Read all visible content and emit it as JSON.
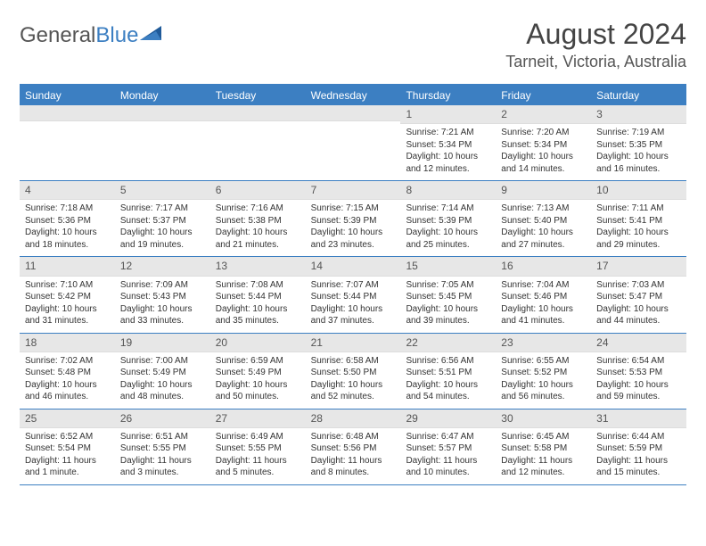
{
  "logo": {
    "text1": "General",
    "text2": "Blue"
  },
  "title": "August 2024",
  "location": "Tarneit, Victoria, Australia",
  "colors": {
    "accent": "#3c7fc2",
    "header_bg": "#e7e7e7",
    "text": "#333333",
    "title_text": "#444444"
  },
  "weekdays": [
    "Sunday",
    "Monday",
    "Tuesday",
    "Wednesday",
    "Thursday",
    "Friday",
    "Saturday"
  ],
  "weeks": [
    [
      {
        "n": "",
        "s": "",
        "ss": "",
        "d": ""
      },
      {
        "n": "",
        "s": "",
        "ss": "",
        "d": ""
      },
      {
        "n": "",
        "s": "",
        "ss": "",
        "d": ""
      },
      {
        "n": "",
        "s": "",
        "ss": "",
        "d": ""
      },
      {
        "n": "1",
        "s": "Sunrise: 7:21 AM",
        "ss": "Sunset: 5:34 PM",
        "d": "Daylight: 10 hours and 12 minutes."
      },
      {
        "n": "2",
        "s": "Sunrise: 7:20 AM",
        "ss": "Sunset: 5:34 PM",
        "d": "Daylight: 10 hours and 14 minutes."
      },
      {
        "n": "3",
        "s": "Sunrise: 7:19 AM",
        "ss": "Sunset: 5:35 PM",
        "d": "Daylight: 10 hours and 16 minutes."
      }
    ],
    [
      {
        "n": "4",
        "s": "Sunrise: 7:18 AM",
        "ss": "Sunset: 5:36 PM",
        "d": "Daylight: 10 hours and 18 minutes."
      },
      {
        "n": "5",
        "s": "Sunrise: 7:17 AM",
        "ss": "Sunset: 5:37 PM",
        "d": "Daylight: 10 hours and 19 minutes."
      },
      {
        "n": "6",
        "s": "Sunrise: 7:16 AM",
        "ss": "Sunset: 5:38 PM",
        "d": "Daylight: 10 hours and 21 minutes."
      },
      {
        "n": "7",
        "s": "Sunrise: 7:15 AM",
        "ss": "Sunset: 5:39 PM",
        "d": "Daylight: 10 hours and 23 minutes."
      },
      {
        "n": "8",
        "s": "Sunrise: 7:14 AM",
        "ss": "Sunset: 5:39 PM",
        "d": "Daylight: 10 hours and 25 minutes."
      },
      {
        "n": "9",
        "s": "Sunrise: 7:13 AM",
        "ss": "Sunset: 5:40 PM",
        "d": "Daylight: 10 hours and 27 minutes."
      },
      {
        "n": "10",
        "s": "Sunrise: 7:11 AM",
        "ss": "Sunset: 5:41 PM",
        "d": "Daylight: 10 hours and 29 minutes."
      }
    ],
    [
      {
        "n": "11",
        "s": "Sunrise: 7:10 AM",
        "ss": "Sunset: 5:42 PM",
        "d": "Daylight: 10 hours and 31 minutes."
      },
      {
        "n": "12",
        "s": "Sunrise: 7:09 AM",
        "ss": "Sunset: 5:43 PM",
        "d": "Daylight: 10 hours and 33 minutes."
      },
      {
        "n": "13",
        "s": "Sunrise: 7:08 AM",
        "ss": "Sunset: 5:44 PM",
        "d": "Daylight: 10 hours and 35 minutes."
      },
      {
        "n": "14",
        "s": "Sunrise: 7:07 AM",
        "ss": "Sunset: 5:44 PM",
        "d": "Daylight: 10 hours and 37 minutes."
      },
      {
        "n": "15",
        "s": "Sunrise: 7:05 AM",
        "ss": "Sunset: 5:45 PM",
        "d": "Daylight: 10 hours and 39 minutes."
      },
      {
        "n": "16",
        "s": "Sunrise: 7:04 AM",
        "ss": "Sunset: 5:46 PM",
        "d": "Daylight: 10 hours and 41 minutes."
      },
      {
        "n": "17",
        "s": "Sunrise: 7:03 AM",
        "ss": "Sunset: 5:47 PM",
        "d": "Daylight: 10 hours and 44 minutes."
      }
    ],
    [
      {
        "n": "18",
        "s": "Sunrise: 7:02 AM",
        "ss": "Sunset: 5:48 PM",
        "d": "Daylight: 10 hours and 46 minutes."
      },
      {
        "n": "19",
        "s": "Sunrise: 7:00 AM",
        "ss": "Sunset: 5:49 PM",
        "d": "Daylight: 10 hours and 48 minutes."
      },
      {
        "n": "20",
        "s": "Sunrise: 6:59 AM",
        "ss": "Sunset: 5:49 PM",
        "d": "Daylight: 10 hours and 50 minutes."
      },
      {
        "n": "21",
        "s": "Sunrise: 6:58 AM",
        "ss": "Sunset: 5:50 PM",
        "d": "Daylight: 10 hours and 52 minutes."
      },
      {
        "n": "22",
        "s": "Sunrise: 6:56 AM",
        "ss": "Sunset: 5:51 PM",
        "d": "Daylight: 10 hours and 54 minutes."
      },
      {
        "n": "23",
        "s": "Sunrise: 6:55 AM",
        "ss": "Sunset: 5:52 PM",
        "d": "Daylight: 10 hours and 56 minutes."
      },
      {
        "n": "24",
        "s": "Sunrise: 6:54 AM",
        "ss": "Sunset: 5:53 PM",
        "d": "Daylight: 10 hours and 59 minutes."
      }
    ],
    [
      {
        "n": "25",
        "s": "Sunrise: 6:52 AM",
        "ss": "Sunset: 5:54 PM",
        "d": "Daylight: 11 hours and 1 minute."
      },
      {
        "n": "26",
        "s": "Sunrise: 6:51 AM",
        "ss": "Sunset: 5:55 PM",
        "d": "Daylight: 11 hours and 3 minutes."
      },
      {
        "n": "27",
        "s": "Sunrise: 6:49 AM",
        "ss": "Sunset: 5:55 PM",
        "d": "Daylight: 11 hours and 5 minutes."
      },
      {
        "n": "28",
        "s": "Sunrise: 6:48 AM",
        "ss": "Sunset: 5:56 PM",
        "d": "Daylight: 11 hours and 8 minutes."
      },
      {
        "n": "29",
        "s": "Sunrise: 6:47 AM",
        "ss": "Sunset: 5:57 PM",
        "d": "Daylight: 11 hours and 10 minutes."
      },
      {
        "n": "30",
        "s": "Sunrise: 6:45 AM",
        "ss": "Sunset: 5:58 PM",
        "d": "Daylight: 11 hours and 12 minutes."
      },
      {
        "n": "31",
        "s": "Sunrise: 6:44 AM",
        "ss": "Sunset: 5:59 PM",
        "d": "Daylight: 11 hours and 15 minutes."
      }
    ]
  ]
}
